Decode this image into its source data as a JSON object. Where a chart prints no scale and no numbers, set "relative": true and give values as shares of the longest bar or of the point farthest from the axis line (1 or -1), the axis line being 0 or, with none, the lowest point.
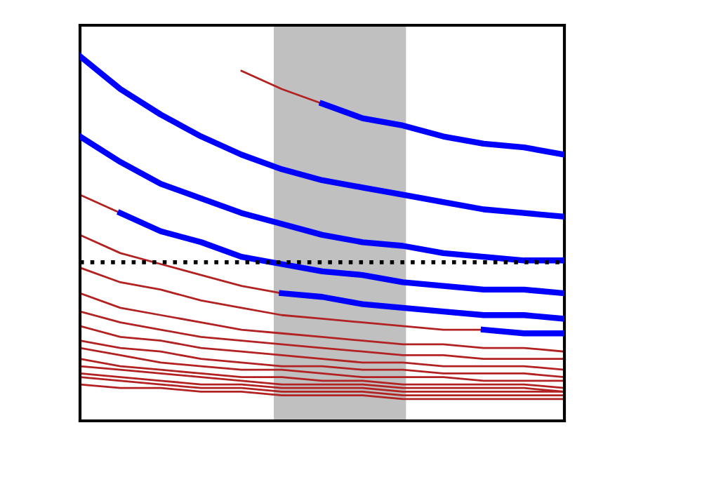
{
  "chart_data": {
    "type": "line",
    "relative": true,
    "categories": [
      null,
      null,
      null,
      null,
      null,
      null,
      null,
      null,
      null,
      null,
      null,
      null,
      null
    ],
    "grid": false,
    "legend": false,
    "marker": "none",
    "line_style": "solid",
    "series": [
      {
        "color": "#b22222",
        "values": [
          null,
          null,
          null,
          null,
          0.96,
          0.91,
          0.87,
          null,
          null,
          null,
          null,
          null,
          null
        ]
      },
      {
        "color": "#b22222",
        "values": [
          0.62,
          0.57,
          null,
          null,
          null,
          null,
          null,
          null,
          null,
          null,
          null,
          null,
          null
        ]
      },
      {
        "color": "#b22222",
        "values": [
          0.51,
          0.46,
          0.43,
          0.4,
          0.37,
          0.35,
          null,
          null,
          null,
          null,
          null,
          null,
          null
        ]
      },
      {
        "color": "#b22222",
        "values": [
          0.42,
          0.38,
          0.36,
          0.33,
          0.31,
          0.29,
          0.28,
          0.27,
          0.26,
          0.25,
          0.25,
          null,
          null
        ]
      },
      {
        "color": "#b22222",
        "values": [
          0.35,
          0.31,
          0.29,
          0.27,
          0.25,
          0.24,
          0.23,
          0.22,
          0.21,
          0.21,
          0.2,
          0.2,
          0.19
        ]
      },
      {
        "color": "#b22222",
        "values": [
          0.3,
          0.27,
          0.25,
          0.23,
          0.22,
          0.21,
          0.2,
          0.19,
          0.18,
          0.18,
          0.17,
          0.17,
          0.17
        ]
      },
      {
        "color": "#b22222",
        "values": [
          0.26,
          0.23,
          0.22,
          0.2,
          0.19,
          0.18,
          0.17,
          0.16,
          0.16,
          0.15,
          0.15,
          0.15,
          0.14
        ]
      },
      {
        "color": "#b22222",
        "values": [
          0.22,
          0.2,
          0.19,
          0.17,
          0.16,
          0.15,
          0.15,
          0.14,
          0.14,
          0.13,
          0.13,
          0.13,
          0.12
        ]
      },
      {
        "color": "#b22222",
        "values": [
          0.2,
          0.18,
          0.16,
          0.15,
          0.14,
          0.14,
          0.13,
          0.12,
          0.12,
          0.12,
          0.11,
          0.11,
          0.11
        ]
      },
      {
        "color": "#b22222",
        "values": [
          0.17,
          0.15,
          0.14,
          0.13,
          0.12,
          0.12,
          0.11,
          0.11,
          0.1,
          0.1,
          0.1,
          0.1,
          0.09
        ]
      },
      {
        "color": "#b22222",
        "values": [
          0.15,
          0.14,
          0.13,
          0.12,
          0.11,
          0.1,
          0.1,
          0.1,
          0.09,
          0.09,
          0.09,
          0.09,
          0.08
        ]
      },
      {
        "color": "#b22222",
        "values": [
          0.13,
          0.12,
          0.11,
          0.1,
          0.1,
          0.09,
          0.09,
          0.09,
          0.08,
          0.08,
          0.08,
          0.08,
          0.08
        ]
      },
      {
        "color": "#b22222",
        "values": [
          0.12,
          0.11,
          0.1,
          0.09,
          0.09,
          0.08,
          0.08,
          0.08,
          0.07,
          0.07,
          0.07,
          0.07,
          0.07
        ]
      },
      {
        "color": "#b22222",
        "values": [
          0.1,
          0.09,
          0.09,
          0.08,
          0.08,
          0.07,
          0.07,
          0.07,
          0.06,
          0.06,
          0.06,
          0.06,
          0.06
        ]
      },
      {
        "color": "#0000ff",
        "values": [
          null,
          null,
          null,
          null,
          null,
          null,
          0.87,
          0.83,
          0.81,
          0.78,
          0.76,
          0.75,
          0.73
        ]
      },
      {
        "color": "#0000ff",
        "values": [
          1,
          0.91,
          0.84,
          0.78,
          0.73,
          0.69,
          0.66,
          0.64,
          0.62,
          0.6,
          0.58,
          0.57,
          0.56
        ]
      },
      {
        "color": "#0000ff",
        "values": [
          0.78,
          0.71,
          0.65,
          0.61,
          0.57,
          0.54,
          0.51,
          0.49,
          0.48,
          0.46,
          0.45,
          0.44,
          0.44
        ]
      },
      {
        "color": "#0000ff",
        "values": [
          null,
          0.57,
          0.52,
          0.49,
          0.45,
          0.43,
          0.41,
          0.4,
          0.38,
          0.37,
          0.36,
          0.36,
          0.35
        ]
      },
      {
        "color": "#0000ff",
        "values": [
          null,
          null,
          null,
          null,
          null,
          0.35,
          0.34,
          0.32,
          0.31,
          0.3,
          0.29,
          0.29,
          0.28
        ]
      },
      {
        "color": "#0000ff",
        "values": [
          null,
          null,
          null,
          null,
          null,
          null,
          null,
          null,
          null,
          null,
          0.25,
          0.24,
          0.24
        ]
      }
    ],
    "ref_lines": [
      {
        "axis": "y",
        "value": 0.435,
        "color": "#000000",
        "line_style": "dotted"
      }
    ]
  }
}
